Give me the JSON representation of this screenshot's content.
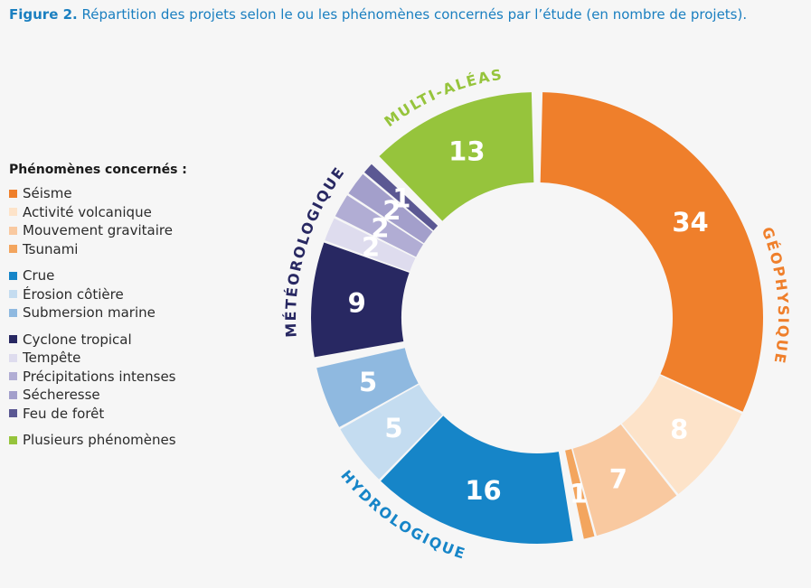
{
  "title": {
    "lead": "Figure 2.",
    "text": " Répartition des projets selon le ou les phénomènes concernés par l’étude (en nombre de projets)."
  },
  "legend": {
    "title": "Phénomènes concernés :",
    "groups": [
      [
        {
          "label": "Séisme",
          "color": "#ef7f2b"
        },
        {
          "label": "Activité volcanique",
          "color": "#fde3c9"
        },
        {
          "label": "Mouvement gravitaire",
          "color": "#f9c9a0"
        },
        {
          "label": "Tsunami",
          "color": "#f3a55e"
        }
      ],
      [
        {
          "label": "Crue",
          "color": "#1685c8"
        },
        {
          "label": "Érosion côtière",
          "color": "#c4dcf0"
        },
        {
          "label": "Submersion marine",
          "color": "#8fb9e0"
        }
      ],
      [
        {
          "label": "Cyclone tropical",
          "color": "#282862"
        },
        {
          "label": "Tempête",
          "color": "#dedcee"
        },
        {
          "label": "Précipitations intenses",
          "color": "#b1add4"
        },
        {
          "label": "Sécheresse",
          "color": "#a39fcb"
        },
        {
          "label": "Feu de forêt",
          "color": "#5b5893"
        }
      ],
      [
        {
          "label": "Plusieurs phénomènes",
          "color": "#96c43c"
        }
      ]
    ]
  },
  "chart_data": {
    "type": "pie",
    "style": "donut",
    "title": "Répartition des projets selon le ou les phénomènes concernés par l’étude (en nombre de projets)",
    "unit": "nombre de projets",
    "groups": [
      {
        "name": "GÉOPHYSIQUE",
        "color": "#ef7f2b",
        "slices": [
          {
            "label": "Séisme",
            "value": 34,
            "color": "#ef7f2b"
          },
          {
            "label": "Activité volcanique",
            "value": 8,
            "color": "#fde3c9"
          },
          {
            "label": "Mouvement gravitaire",
            "value": 7,
            "color": "#f9c9a0"
          },
          {
            "label": "Tsunami",
            "value": 1,
            "color": "#f3a55e"
          }
        ]
      },
      {
        "name": "HYDROLOGIQUE",
        "color": "#1685c8",
        "slices": [
          {
            "label": "Crue",
            "value": 16,
            "color": "#1685c8"
          },
          {
            "label": "Érosion côtière",
            "value": 5,
            "color": "#c4dcf0"
          },
          {
            "label": "Submersion marine",
            "value": 5,
            "color": "#8fb9e0"
          }
        ]
      },
      {
        "name": "MÉTÉOROLOGIQUE",
        "color": "#282862",
        "slices": [
          {
            "label": "Cyclone tropical",
            "value": 9,
            "color": "#282862"
          },
          {
            "label": "Tempête",
            "value": 2,
            "color": "#dedcee"
          },
          {
            "label": "Précipitations intenses",
            "value": 2,
            "color": "#b1add4"
          },
          {
            "label": "Sécheresse",
            "value": 2,
            "color": "#a39fcb"
          },
          {
            "label": "Feu de forêt",
            "value": 1,
            "color": "#5b5893"
          }
        ]
      },
      {
        "name": "MULTI-ALÉAS",
        "color": "#96c43c",
        "slices": [
          {
            "label": "Plusieurs phénomènes",
            "value": 13,
            "color": "#96c43c"
          }
        ]
      }
    ]
  }
}
